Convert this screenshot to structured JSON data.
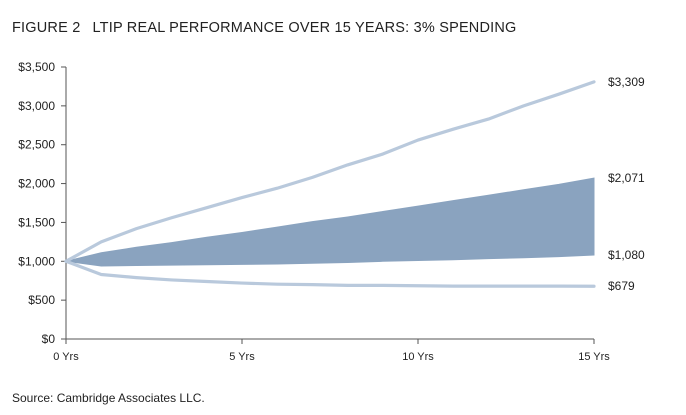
{
  "figure": {
    "label": "FIGURE 2",
    "title": "LTIP REAL PERFORMANCE OVER 15 YEARS: 3% SPENDING"
  },
  "source": "Source: Cambridge Associates LLC.",
  "chart_data": {
    "type": "area",
    "title": "LTIP REAL PERFORMANCE OVER 15 YEARS: 3% SPENDING",
    "xlabel": "",
    "ylabel": "",
    "xlim": [
      0,
      15
    ],
    "ylim": [
      0,
      3500
    ],
    "x": [
      0,
      1,
      2,
      3,
      4,
      5,
      6,
      7,
      8,
      9,
      10,
      11,
      12,
      13,
      14,
      15
    ],
    "x_ticks": [
      {
        "value": 0,
        "label": "0 Yrs"
      },
      {
        "value": 5,
        "label": "5 Yrs"
      },
      {
        "value": 10,
        "label": "10 Yrs"
      },
      {
        "value": 15,
        "label": "15 Yrs"
      }
    ],
    "y_ticks": [
      {
        "value": 0,
        "label": "$0"
      },
      {
        "value": 500,
        "label": "$500"
      },
      {
        "value": 1000,
        "label": "$1,000"
      },
      {
        "value": 1500,
        "label": "$1,500"
      },
      {
        "value": 2000,
        "label": "$2,000"
      },
      {
        "value": 2500,
        "label": "$2,500"
      },
      {
        "value": 3000,
        "label": "$3,000"
      },
      {
        "value": 3500,
        "label": "$3,500"
      }
    ],
    "grid": false,
    "band": {
      "upper": [
        1000,
        1110,
        1180,
        1240,
        1310,
        1370,
        1440,
        1510,
        1570,
        1640,
        1710,
        1780,
        1850,
        1920,
        1990,
        2071
      ],
      "lower": [
        1000,
        940,
        945,
        950,
        955,
        960,
        965,
        975,
        985,
        1000,
        1010,
        1020,
        1035,
        1045,
        1060,
        1080
      ],
      "color": "#8aa3bf",
      "end_labels": {
        "upper": "$2,071",
        "lower": "$1,080"
      }
    },
    "lines": [
      {
        "values": [
          1000,
          1250,
          1420,
          1560,
          1690,
          1820,
          1940,
          2080,
          2240,
          2380,
          2560,
          2700,
          2830,
          3000,
          3150,
          3309
        ],
        "color": "#b9c9dc",
        "end_label": "$3,309"
      },
      {
        "values": [
          1000,
          830,
          790,
          760,
          740,
          720,
          705,
          700,
          690,
          690,
          685,
          680,
          680,
          680,
          680,
          679
        ],
        "color": "#b9c9dc",
        "end_label": "$679"
      }
    ]
  }
}
